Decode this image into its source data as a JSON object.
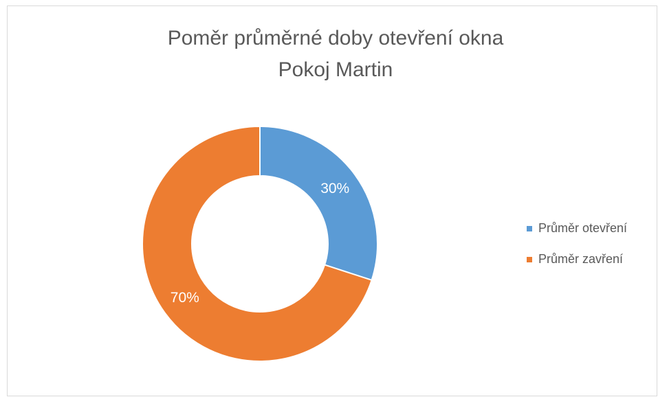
{
  "chart_data": {
    "type": "donut",
    "title": [
      "Poměr průměrné doby otevření okna",
      "Pokoj Martin"
    ],
    "categories": [
      "Průměr otevření",
      "Průměr zavření"
    ],
    "values": [
      30,
      70
    ],
    "value_labels": [
      "30%",
      "70%"
    ],
    "colors": [
      "#5b9bd5",
      "#ed7d31"
    ],
    "legend": "right"
  }
}
